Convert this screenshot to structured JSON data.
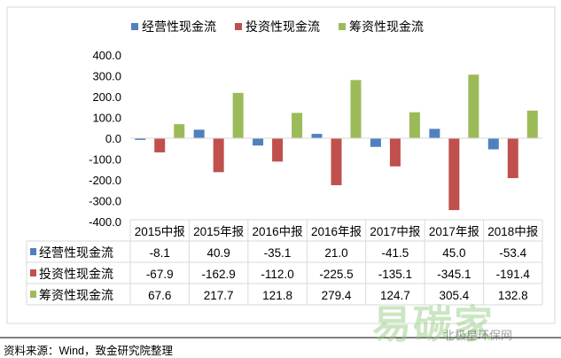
{
  "chart_data": {
    "type": "bar",
    "title": "",
    "categories": [
      "2015中报",
      "2015年报",
      "2016中报",
      "2016年报",
      "2017中报",
      "2017年报",
      "2018中报"
    ],
    "series": [
      {
        "name": "经营性现金流",
        "color": "#4f81bd",
        "values": [
          -8.1,
          40.9,
          -35.1,
          21.0,
          -41.5,
          45.0,
          -53.4
        ],
        "labels": [
          "-8.1",
          "40.9",
          "-35.1",
          "21.0",
          "-41.5",
          "45.0",
          "-53.4"
        ]
      },
      {
        "name": "投资性现金流",
        "color": "#c0504d",
        "values": [
          -67.9,
          -162.9,
          -112.0,
          -225.5,
          -135.1,
          -345.1,
          -191.4
        ],
        "labels": [
          "-67.9",
          "-162.9",
          "-112.0",
          "-225.5",
          "-135.1",
          "-345.1",
          "-191.4"
        ]
      },
      {
        "name": "筹资性现金流",
        "color": "#9bbb59",
        "values": [
          67.6,
          217.7,
          121.8,
          279.4,
          124.7,
          305.4,
          132.8
        ],
        "labels": [
          "67.6",
          "217.7",
          "121.8",
          "279.4",
          "124.7",
          "305.4",
          "132.8"
        ]
      }
    ],
    "ylim": [
      -400,
      400
    ],
    "yticks": [
      "400.0",
      "300.0",
      "200.0",
      "100.0",
      "0.0",
      "-100.0",
      "-200.0",
      "-300.0",
      "-400.0"
    ],
    "legend": "top",
    "data_table": true
  },
  "source": "资料来源：Wind，致金研究院整理",
  "watermark": "易碳家 tanjiaoyi",
  "watermark2": "北极星环保网"
}
